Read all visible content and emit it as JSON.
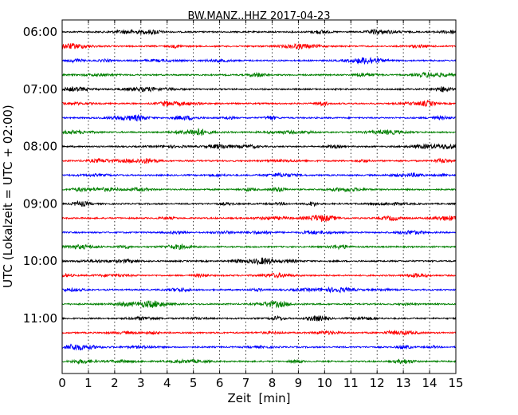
{
  "chart_data": {
    "type": "line",
    "title": "BW.MANZ..HHZ 2017-04-23",
    "xlabel": "Zeit  [min]",
    "ylabel": "UTC (Lokalzeit = UTC + 02:00)",
    "x_ticks": [
      "0",
      "1",
      "2",
      "3",
      "4",
      "5",
      "6",
      "7",
      "8",
      "9",
      "10",
      "11",
      "12",
      "13",
      "14",
      "15"
    ],
    "xlim": [
      0,
      15
    ],
    "y_ticks": [
      "06:00",
      "07:00",
      "08:00",
      "09:00",
      "10:00",
      "11:00"
    ],
    "row_start_times": [
      "06:00",
      "06:15",
      "06:30",
      "06:45",
      "07:00",
      "07:15",
      "07:30",
      "07:45",
      "08:00",
      "08:15",
      "08:30",
      "08:45",
      "09:00",
      "09:15",
      "09:30",
      "09:45",
      "10:00",
      "10:15",
      "10:30",
      "10:45",
      "11:00",
      "11:15",
      "11:30",
      "11:45"
    ],
    "colors": [
      "#000000",
      "#ff0000",
      "#0000ff",
      "#008000"
    ],
    "grid": "vertical dotted"
  }
}
